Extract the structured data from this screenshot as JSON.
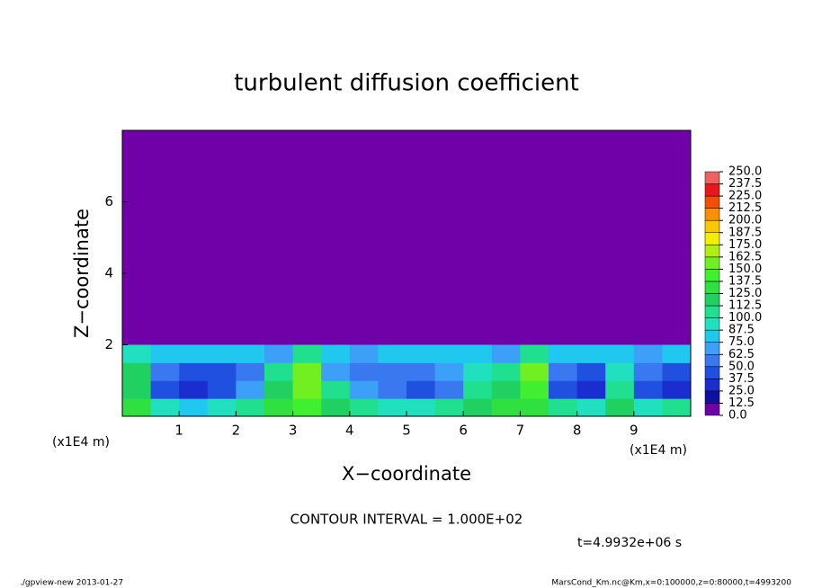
{
  "chart_data": {
    "type": "contour",
    "title": "turbulent diffusion coefficient",
    "x_label": "X−coordinate",
    "y_label": "Z−coordinate",
    "x_unit_left": "(x1E4 m)",
    "x_unit_right": "(x1E4 m)",
    "contour_note": "CONTOUR INTERVAL = 1.000E+02",
    "time_note": "t=4.9932e+06 s",
    "footer_left": "./gpview-new  2013-01-27",
    "footer_right": "MarsCond_Km.nc@Km,x=0:100000,z=0:80000,t=4993200",
    "xlim": [
      0,
      10
    ],
    "ylim": [
      0,
      8
    ],
    "xticks": [
      1,
      2,
      3,
      4,
      5,
      6,
      7,
      8,
      9
    ],
    "yticks": [
      2,
      4,
      6
    ],
    "x": [
      0.25,
      0.75,
      1.25,
      1.75,
      2.25,
      2.75,
      3.25,
      3.75,
      4.25,
      4.75,
      5.25,
      5.75,
      6.25,
      6.75,
      7.25,
      7.75,
      8.25,
      8.75,
      9.25,
      9.75
    ],
    "z": [
      0.25,
      0.75,
      1.25,
      1.75
    ],
    "values": [
      [
        125,
        87.5,
        75,
        87.5,
        100,
        125,
        137.5,
        112.5,
        100,
        87.5,
        87.5,
        100,
        112.5,
        125,
        125,
        100,
        87.5,
        112.5,
        87.5,
        100
      ],
      [
        112.5,
        37.5,
        25,
        37.5,
        62.5,
        112.5,
        150,
        100,
        62.5,
        50,
        37.5,
        50,
        100,
        112.5,
        137.5,
        37.5,
        25,
        100,
        37.5,
        25
      ],
      [
        112.5,
        50,
        37.5,
        37.5,
        50,
        100,
        150,
        62.5,
        50,
        50,
        50,
        62.5,
        87.5,
        100,
        150,
        50,
        37.5,
        87.5,
        50,
        37.5
      ],
      [
        87.5,
        75,
        75,
        75,
        75,
        62.5,
        100,
        75,
        62.5,
        75,
        75,
        75,
        75,
        62.5,
        100,
        75,
        75,
        75,
        62.5,
        75
      ]
    ],
    "levels": [
      {
        "value": 0,
        "label": "0.0"
      },
      {
        "value": 12.5,
        "label": "12.5"
      },
      {
        "value": 25,
        "label": "25.0"
      },
      {
        "value": 37.5,
        "label": "37.5"
      },
      {
        "value": 50,
        "label": "50.0"
      },
      {
        "value": 62.5,
        "label": "62.5"
      },
      {
        "value": 75,
        "label": "75.0"
      },
      {
        "value": 87.5,
        "label": "87.5"
      },
      {
        "value": 100,
        "label": "100.0"
      },
      {
        "value": 112.5,
        "label": "112.5"
      },
      {
        "value": 125,
        "label": "125.0"
      },
      {
        "value": 137.5,
        "label": "137.5"
      },
      {
        "value": 150,
        "label": "150.0"
      },
      {
        "value": 162.5,
        "label": "162.5"
      },
      {
        "value": 175,
        "label": "175.0"
      },
      {
        "value": 187.5,
        "label": "187.5"
      },
      {
        "value": 200,
        "label": "200.0"
      },
      {
        "value": 212.5,
        "label": "212.5"
      },
      {
        "value": 225,
        "label": "225.0"
      },
      {
        "value": 237.5,
        "label": "237.5"
      },
      {
        "value": 250,
        "label": "250.0"
      }
    ],
    "colors": [
      "#7000a8",
      "#1010a0",
      "#1a2ed0",
      "#2050e0",
      "#3a78f0",
      "#3ca0f8",
      "#20c8f0",
      "#20e0c0",
      "#20e090",
      "#20d060",
      "#30e040",
      "#40f030",
      "#70f020",
      "#b0f010",
      "#f0f000",
      "#f8c800",
      "#f89000",
      "#f05000",
      "#e81818",
      "#f06060",
      "#f8a0a0"
    ]
  }
}
